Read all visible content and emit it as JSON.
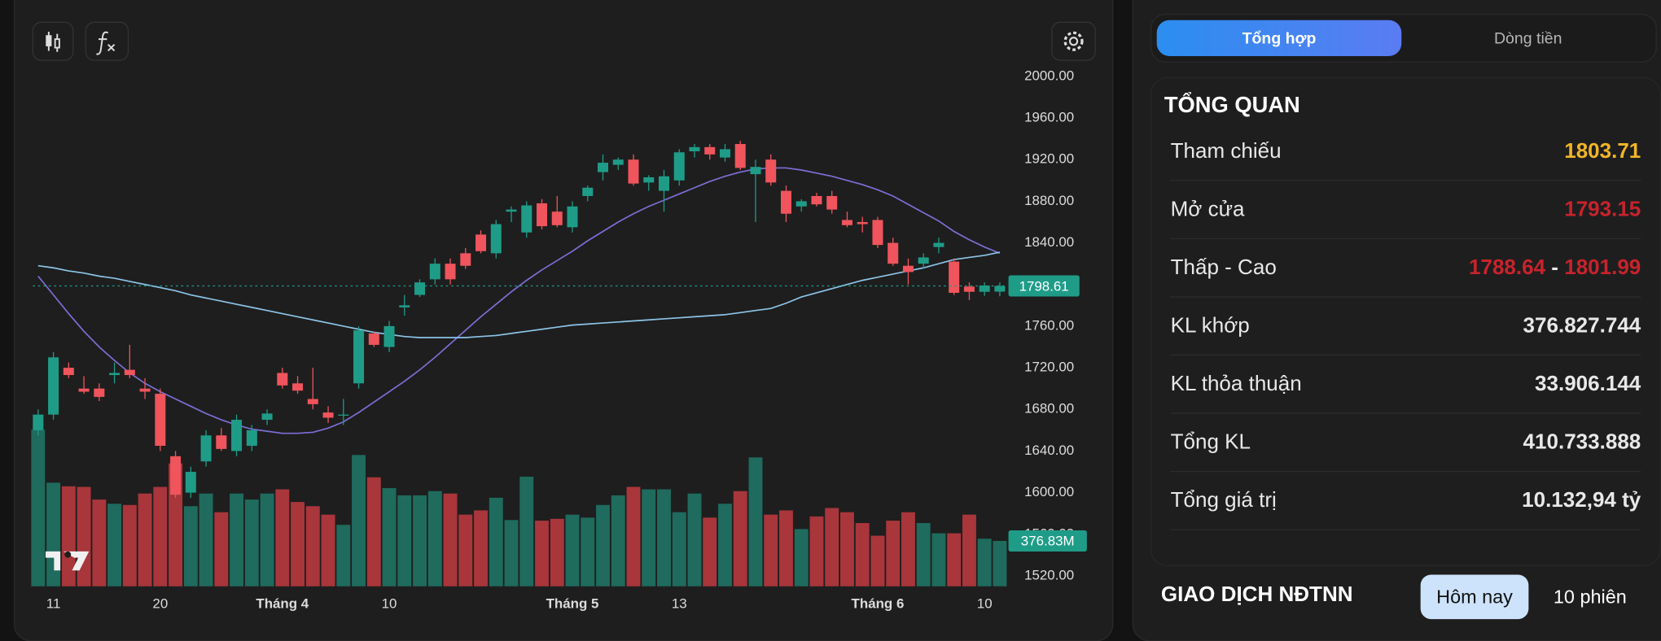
{
  "chart_data": {
    "type": "candlestick",
    "up_color": "#1f9c88",
    "down_color": "#f0545c",
    "up_volume_color": "#1f6b5e",
    "down_volume_color": "#a8363b",
    "categories": [
      null,
      "11",
      null,
      null,
      null,
      null,
      null,
      null,
      "20",
      null,
      null,
      null,
      null,
      null,
      null,
      null,
      "Tháng 4",
      null,
      null,
      null,
      null,
      null,
      null,
      "10",
      null,
      null,
      null,
      null,
      null,
      null,
      null,
      null,
      null,
      null,
      null,
      "Tháng 5",
      null,
      null,
      null,
      null,
      null,
      null,
      "13",
      null,
      null,
      null,
      null,
      null,
      null,
      null,
      null,
      null,
      null,
      null,
      null,
      "Tháng 6",
      null,
      null,
      null,
      null,
      null,
      null,
      "10",
      null
    ],
    "open": [
      1660,
      1675,
      1720,
      1700,
      1700,
      1713,
      1718,
      1700,
      1695,
      1635,
      1600,
      1630,
      1655,
      1640,
      1645,
      1670,
      1715,
      1705,
      1690,
      1677,
      1675,
      1705,
      1753,
      1740,
      1778,
      1790,
      1805,
      1820,
      1830,
      1848,
      1830,
      1870,
      1850,
      1878,
      1870,
      1855,
      1885,
      1908,
      1915,
      1920,
      1898,
      1890,
      1900,
      1928,
      1932,
      1922,
      1935,
      1906,
      1920,
      1890,
      1875,
      1885,
      1885,
      1862,
      1860,
      1862,
      1840,
      1818,
      1820,
      1836,
      1822,
      1798,
      1793,
      1793.15
    ],
    "high": [
      1680,
      1735,
      1725,
      1712,
      1705,
      1725,
      1742,
      1710,
      1700,
      1640,
      1625,
      1660,
      1662,
      1675,
      1665,
      1680,
      1720,
      1712,
      1720,
      1683,
      1690,
      1760,
      1755,
      1765,
      1790,
      1805,
      1825,
      1825,
      1835,
      1852,
      1862,
      1875,
      1880,
      1882,
      1885,
      1880,
      1895,
      1925,
      1922,
      1925,
      1905,
      1910,
      1930,
      1935,
      1935,
      1935,
      1938,
      1920,
      1925,
      1895,
      1882,
      1888,
      1890,
      1870,
      1865,
      1865,
      1845,
      1825,
      1830,
      1845,
      1825,
      1802,
      1802,
      1801.99
    ],
    "low": [
      1655,
      1670,
      1710,
      1695,
      1688,
      1705,
      1710,
      1690,
      1640,
      1595,
      1595,
      1625,
      1640,
      1635,
      1640,
      1665,
      1700,
      1695,
      1680,
      1667,
      1665,
      1700,
      1740,
      1735,
      1770,
      1788,
      1800,
      1800,
      1815,
      1830,
      1825,
      1860,
      1845,
      1853,
      1855,
      1850,
      1880,
      1900,
      1910,
      1895,
      1890,
      1870,
      1895,
      1922,
      1920,
      1918,
      1910,
      1860,
      1895,
      1860,
      1870,
      1875,
      1868,
      1855,
      1850,
      1835,
      1818,
      1800,
      1815,
      1830,
      1790,
      1785,
      1789,
      1788.64
    ],
    "close": [
      1675,
      1730,
      1713,
      1697,
      1692,
      1715,
      1713,
      1697,
      1645,
      1598,
      1620,
      1655,
      1642,
      1670,
      1660,
      1676,
      1703,
      1698,
      1685,
      1672,
      1675,
      1756,
      1742,
      1760,
      1780,
      1802,
      1820,
      1805,
      1818,
      1832,
      1858,
      1872,
      1876,
      1856,
      1857,
      1875,
      1893,
      1917,
      1920,
      1897,
      1903,
      1904,
      1927,
      1932,
      1925,
      1930,
      1912,
      1913,
      1898,
      1868,
      1880,
      1877,
      1872,
      1857,
      1858,
      1838,
      1820,
      1812,
      1826,
      1840,
      1792,
      1793,
      1799,
      1798.61
    ],
    "volume": [
      1300,
      860,
      830,
      825,
      720,
      685,
      675,
      770,
      825,
      1020,
      665,
      770,
      615,
      770,
      720,
      770,
      805,
      700,
      665,
      595,
      510,
      1090,
      905,
      815,
      755,
      755,
      790,
      770,
      595,
      630,
      735,
      550,
      910,
      545,
      560,
      595,
      570,
      675,
      755,
      825,
      805,
      805,
      615,
      770,
      570,
      685,
      790,
      1070,
      595,
      630,
      475,
      580,
      650,
      615,
      525,
      420,
      545,
      615,
      525,
      440,
      440,
      595,
      395,
      376.83
    ],
    "last_volume_label": "376.83M",
    "moving_averages": [
      {
        "color": "#7b6fd6",
        "values": [
          1808,
          1790,
          1772,
          1755,
          1740,
          1727,
          1715,
          1705,
          1697,
          1690,
          1683,
          1676,
          1670,
          1665,
          1661,
          1659,
          1657,
          1657,
          1658,
          1662,
          1668,
          1677,
          1687,
          1697,
          1707,
          1718,
          1730,
          1743,
          1756,
          1769,
          1781,
          1793,
          1804,
          1814,
          1823,
          1832,
          1842,
          1851,
          1860,
          1868,
          1875,
          1881,
          1887,
          1893,
          1899,
          1904,
          1908,
          1911,
          1912,
          1912,
          1910,
          1907,
          1904,
          1900,
          1896,
          1891,
          1885,
          1877,
          1869,
          1861,
          1851,
          1843,
          1836,
          1830
        ]
      },
      {
        "color": "#8cc4e8",
        "values": [
          1818,
          1816,
          1813,
          1811,
          1808,
          1806,
          1803,
          1800,
          1797,
          1794,
          1790,
          1787,
          1784,
          1781,
          1778,
          1775,
          1772,
          1769,
          1766,
          1763,
          1760,
          1757,
          1754,
          1752,
          1750,
          1749,
          1749,
          1749,
          1749,
          1750,
          1751,
          1753,
          1755,
          1757,
          1759,
          1761,
          1762,
          1763,
          1764,
          1765,
          1766,
          1767,
          1768,
          1769,
          1770,
          1771,
          1773,
          1775,
          1777,
          1782,
          1788,
          1792,
          1796,
          1800,
          1804,
          1807,
          1810,
          1813,
          1816,
          1820,
          1824,
          1826,
          1828,
          1831
        ]
      }
    ],
    "ylim": [
      1510,
      2052
    ],
    "yticks": [
      {
        "value": 1520,
        "label": "1520.00"
      },
      {
        "value": 1560,
        "label": "1560.00"
      },
      {
        "value": 1600,
        "label": "1600.00"
      },
      {
        "value": 1640,
        "label": "1640.00"
      },
      {
        "value": 1680,
        "label": "1680.00"
      },
      {
        "value": 1720,
        "label": "1720.00"
      },
      {
        "value": 1760,
        "label": "1760.00"
      },
      {
        "value": 1800,
        "label": "1800.00"
      },
      {
        "value": 1840,
        "label": "1840.00"
      },
      {
        "value": 1880,
        "label": "1880.00"
      },
      {
        "value": 1920,
        "label": "1920.00"
      },
      {
        "value": 1960,
        "label": "1960.00"
      },
      {
        "value": 2000,
        "label": "2000.00"
      }
    ]
  },
  "summary": {
    "tabs": [
      "Tổng hợp",
      "Dòng tiền"
    ],
    "title": "TỔNG QUAN",
    "reference": {
      "label": "Tham chiếu",
      "value": "1803.71"
    },
    "open": {
      "label": "Mở cửa",
      "value": "1793.15"
    },
    "low_high": {
      "label": "Thấp - Cao",
      "low": "1788.64",
      "separator": "-",
      "high": "1801.99"
    },
    "rows": [
      {
        "label": "KL khớp",
        "value": "376.827.744"
      },
      {
        "label": "KL thỏa thuận",
        "value": "33.906.144"
      },
      {
        "label": "Tổng KL",
        "value": "410.733.888"
      },
      {
        "label": "Tổng giá trị",
        "value": "10.132,94 tỷ"
      }
    ]
  },
  "foreign_trading": {
    "title": "GIAO DỊCH NĐTNN",
    "tabs": [
      "Hôm nay",
      "10 phiên"
    ]
  }
}
